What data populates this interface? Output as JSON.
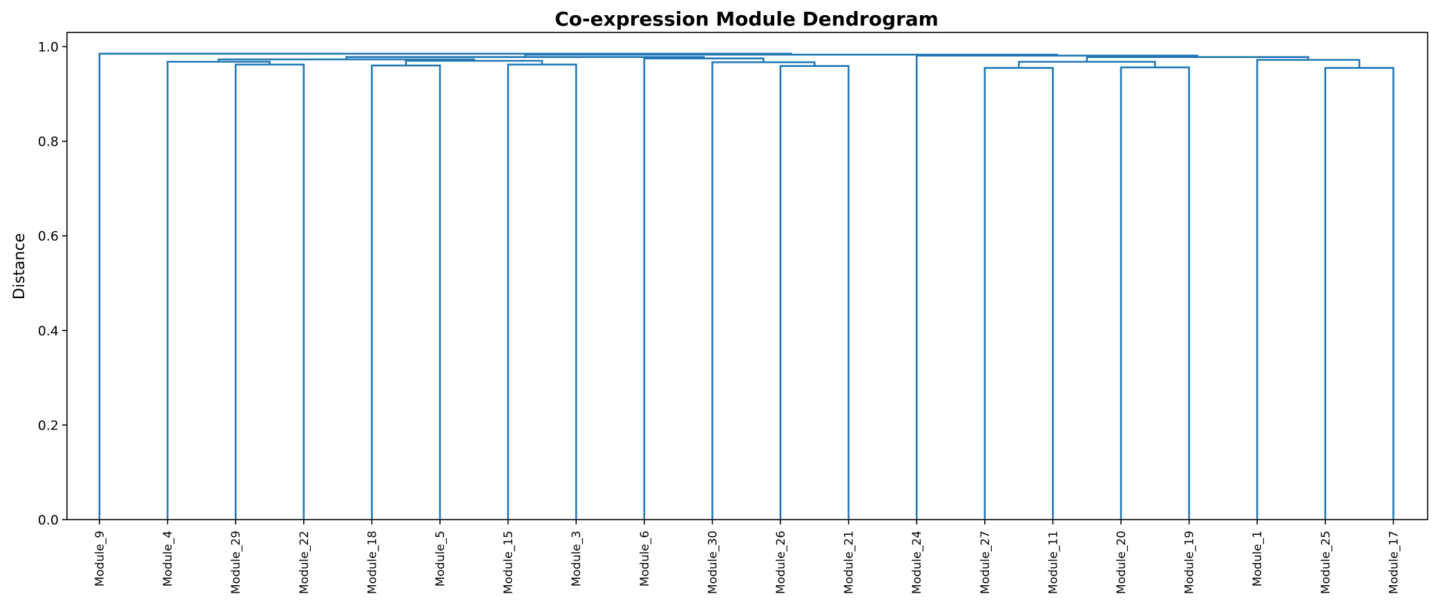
{
  "chart_data": {
    "type": "dendrogram",
    "title": "Co-expression Module Dendrogram",
    "xlabel": "",
    "ylabel": "Distance",
    "ylim": [
      0,
      1.03
    ],
    "yticks": [
      "0.0",
      "0.2",
      "0.4",
      "0.6",
      "0.8",
      "1.0"
    ],
    "link_color": "#1f77b4",
    "leaves": [
      "Module_9",
      "Module_4",
      "Module_29",
      "Module_22",
      "Module_18",
      "Module_5",
      "Module_15",
      "Module_3",
      "Module_6",
      "Module_30",
      "Module_26",
      "Module_21",
      "Module_24",
      "Module_27",
      "Module_11",
      "Module_20",
      "Module_19",
      "Module_1",
      "Module_25",
      "Module_17"
    ],
    "merges": [
      {
        "id": "A",
        "left": "Module_29",
        "right": "Module_22",
        "height": 0.962
      },
      {
        "id": "B",
        "left": "Module_4",
        "right": "A",
        "height": 0.968
      },
      {
        "id": "C",
        "left": "Module_18",
        "right": "Module_5",
        "height": 0.96
      },
      {
        "id": "D",
        "left": "Module_15",
        "right": "Module_3",
        "height": 0.962
      },
      {
        "id": "E",
        "left": "C",
        "right": "D",
        "height": 0.97
      },
      {
        "id": "F",
        "left": "B",
        "right": "E",
        "height": 0.973
      },
      {
        "id": "G",
        "left": "Module_26",
        "right": "Module_21",
        "height": 0.959
      },
      {
        "id": "H",
        "left": "Module_30",
        "right": "G",
        "height": 0.967
      },
      {
        "id": "I",
        "left": "Module_6",
        "right": "H",
        "height": 0.975
      },
      {
        "id": "J",
        "left": "F",
        "right": "I",
        "height": 0.978
      },
      {
        "id": "K",
        "left": "Module_27",
        "right": "Module_11",
        "height": 0.955
      },
      {
        "id": "L",
        "left": "Module_20",
        "right": "Module_19",
        "height": 0.956
      },
      {
        "id": "M",
        "left": "K",
        "right": "L",
        "height": 0.968
      },
      {
        "id": "N",
        "left": "Module_25",
        "right": "Module_17",
        "height": 0.955
      },
      {
        "id": "O",
        "left": "Module_1",
        "right": "N",
        "height": 0.972
      },
      {
        "id": "P",
        "left": "M",
        "right": "O",
        "height": 0.978
      },
      {
        "id": "Q",
        "left": "Module_24",
        "right": "P",
        "height": 0.981
      },
      {
        "id": "R",
        "left": "J",
        "right": "Q",
        "height": 0.983
      },
      {
        "id": "S",
        "left": "Module_9",
        "right": "R",
        "height": 0.985
      }
    ]
  }
}
